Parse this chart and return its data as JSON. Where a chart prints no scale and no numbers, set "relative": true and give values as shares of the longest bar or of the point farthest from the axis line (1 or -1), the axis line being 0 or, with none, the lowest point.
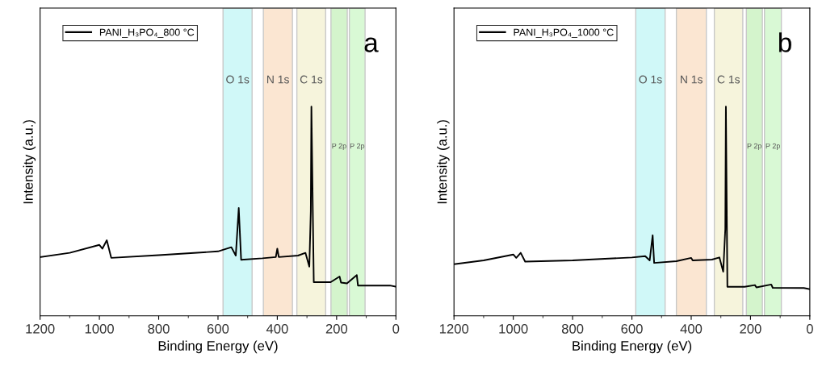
{
  "chart_data": [
    {
      "type": "line",
      "relative": true,
      "xlabel": "Binding Energy (eV)",
      "ylabel": "Intensity (a.u.)",
      "annotations": [
        "a"
      ],
      "legend": "top left",
      "grid": false,
      "marker": "none",
      "line_style": "solid",
      "xlim": [
        1200,
        0
      ],
      "xticks": [
        1200,
        1000,
        800,
        600,
        400,
        200,
        0
      ],
      "series": [
        {
          "name": "PANI_H₃PO₄_800 °C",
          "color": "#000000",
          "x": [
            1200,
            1100,
            1000,
            990,
            975,
            960,
            800,
            600,
            555,
            540,
            530,
            522,
            450,
            405,
            400,
            395,
            330,
            305,
            292,
            287,
            285,
            277,
            220,
            190,
            185,
            165,
            132,
            128,
            20,
            0
          ],
          "values": [
            0.281,
            0.301,
            0.339,
            0.321,
            0.361,
            0.277,
            0.29,
            0.308,
            0.328,
            0.288,
            0.515,
            0.268,
            0.275,
            0.281,
            0.321,
            0.281,
            0.288,
            0.301,
            0.235,
            0.501,
            1.0,
            0.161,
            0.161,
            0.188,
            0.159,
            0.155,
            0.195,
            0.145,
            0.145,
            0.139
          ]
        }
      ],
      "bands": [
        {
          "axis": "x",
          "from": 583,
          "to": 485,
          "label": "O 1s",
          "color": "#d0f8f8"
        },
        {
          "axis": "x",
          "from": 447,
          "to": 349,
          "label": "N 1s",
          "color": "#fbe6d2"
        },
        {
          "axis": "x",
          "from": 334,
          "to": 237,
          "label": "C 1s",
          "color": "#f6f4dc"
        },
        {
          "axis": "x",
          "from": 219,
          "to": 164,
          "label": "P 2p",
          "color": "#d4f4cc"
        },
        {
          "axis": "x",
          "from": 157,
          "to": 104,
          "label": "P 2p",
          "color": "#d9f9d5"
        }
      ]
    },
    {
      "type": "line",
      "relative": true,
      "xlabel": "Binding Energy (eV)",
      "ylabel": "Intensity (a.u.)",
      "annotations": [
        "b"
      ],
      "legend": "top left",
      "grid": false,
      "marker": "none",
      "line_style": "solid",
      "xlim": [
        1200,
        0
      ],
      "xticks": [
        1200,
        1000,
        800,
        600,
        400,
        200,
        0
      ],
      "series": [
        {
          "name": "PANI_H₃PO₄_1000 °C",
          "color": "#000000",
          "x": [
            1200,
            1100,
            1000,
            990,
            975,
            960,
            800,
            600,
            555,
            540,
            530,
            525,
            450,
            400,
            395,
            330,
            305,
            292,
            285,
            283,
            278,
            220,
            185,
            180,
            130,
            125,
            20,
            0
          ],
          "values": [
            0.247,
            0.265,
            0.293,
            0.277,
            0.301,
            0.259,
            0.265,
            0.279,
            0.285,
            0.265,
            0.385,
            0.253,
            0.261,
            0.277,
            0.265,
            0.269,
            0.279,
            0.211,
            0.415,
            1.0,
            0.139,
            0.139,
            0.147,
            0.136,
            0.15,
            0.134,
            0.133,
            0.127
          ]
        }
      ],
      "bands": [
        {
          "axis": "x",
          "from": 587,
          "to": 488,
          "label": "O 1s",
          "color": "#d0f8f8"
        },
        {
          "axis": "x",
          "from": 450,
          "to": 349,
          "label": "N 1s",
          "color": "#fbe6d2"
        },
        {
          "axis": "x",
          "from": 322,
          "to": 226,
          "label": "C 1s",
          "color": "#f6f4dc"
        },
        {
          "axis": "x",
          "from": 214,
          "to": 160,
          "label": "P 2p",
          "color": "#d4f4cc"
        },
        {
          "axis": "x",
          "from": 153,
          "to": 96,
          "label": "P 2p",
          "color": "#d9f9d5"
        }
      ]
    }
  ]
}
